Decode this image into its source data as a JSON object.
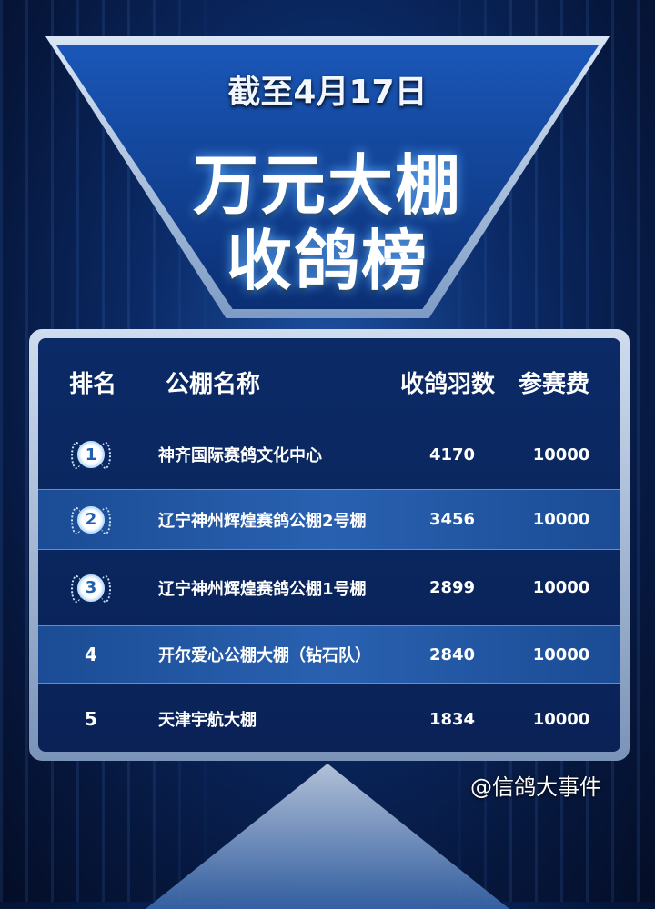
{
  "header": {
    "date": "截至4月17日",
    "title_line1": "万元大棚",
    "title_line2": "收鸽榜"
  },
  "table": {
    "columns": [
      "排名",
      "公棚名称",
      "收鸽羽数",
      "参赛费"
    ],
    "rows": [
      {
        "rank": "1",
        "medal": true,
        "name": "神齐国际赛鸽文化中心",
        "count": "4170",
        "fee": "10000"
      },
      {
        "rank": "2",
        "medal": true,
        "name": "辽宁神州辉煌赛鸽公棚2号棚",
        "count": "3456",
        "fee": "10000"
      },
      {
        "rank": "3",
        "medal": true,
        "name": "辽宁神州辉煌赛鸽公棚1号棚",
        "count": "2899",
        "fee": "10000"
      },
      {
        "rank": "4",
        "medal": false,
        "name": "开尔爱心公棚大棚（钻石队）",
        "count": "2840",
        "fee": "10000"
      },
      {
        "rank": "5",
        "medal": false,
        "name": "天津宇航大棚",
        "count": "1834",
        "fee": "10000"
      }
    ]
  },
  "watermark": "@信鸽大事件",
  "colors": {
    "background": "#0b2a66",
    "accent": "#2961b0",
    "frame": "#cfdcee"
  }
}
